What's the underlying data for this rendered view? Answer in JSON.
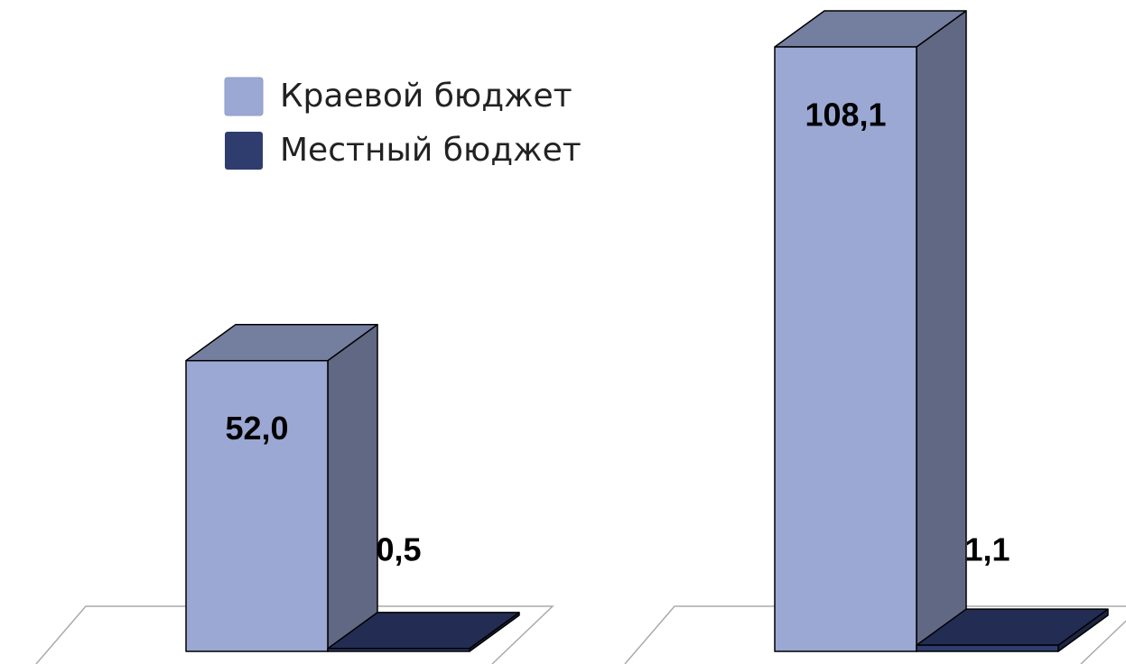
{
  "chart_data": {
    "type": "bar3d",
    "categories": [
      null,
      null
    ],
    "series": [
      {
        "name": "Краевой бюджет",
        "color": "#9BA8D3",
        "values": [
          52.0,
          108.1
        ],
        "value_labels": [
          "52,0",
          "108,1"
        ]
      },
      {
        "name": "Местный бюджет",
        "color": "#2E3C6E",
        "values": [
          0.5,
          1.1
        ],
        "value_labels": [
          "0,5",
          "1,1"
        ]
      }
    ]
  }
}
